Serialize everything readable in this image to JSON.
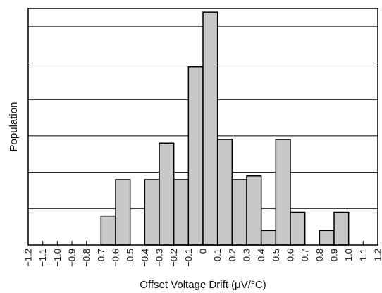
{
  "chart_data": {
    "type": "bar",
    "title": "",
    "xlabel": "Offset Voltage Drift (μV/°C)",
    "ylabel": "Population",
    "x_ticks": [
      "−1.2",
      "−1.1",
      "−1.0",
      "−0.9",
      "−0.8",
      "−0.7",
      "−0.6",
      "−0.5",
      "−0.4",
      "−0.3",
      "−0.2",
      "−0.1",
      "0",
      "0.1",
      "0.2",
      "0.3",
      "0.4",
      "0.5",
      "0.6",
      "0.7",
      "0.8",
      "0.9",
      "1.0",
      "1.1",
      "1.2"
    ],
    "xlim": [
      -1.2,
      1.2
    ],
    "ylim": [
      0,
      65
    ],
    "y_gridlines": [
      10,
      20,
      30,
      40,
      50,
      60
    ],
    "bar_color": "#c8c8c8",
    "bars": [
      {
        "x0": -0.7,
        "x1": -0.6,
        "value": 8
      },
      {
        "x0": -0.6,
        "x1": -0.5,
        "value": 18
      },
      {
        "x0": -0.4,
        "x1": -0.3,
        "value": 18
      },
      {
        "x0": -0.3,
        "x1": -0.2,
        "value": 28
      },
      {
        "x0": -0.2,
        "x1": -0.1,
        "value": 18
      },
      {
        "x0": -0.1,
        "x1": 0.0,
        "value": 49
      },
      {
        "x0": 0.0,
        "x1": 0.1,
        "value": 64
      },
      {
        "x0": 0.1,
        "x1": 0.2,
        "value": 29
      },
      {
        "x0": 0.2,
        "x1": 0.3,
        "value": 18
      },
      {
        "x0": 0.3,
        "x1": 0.4,
        "value": 19
      },
      {
        "x0": 0.4,
        "x1": 0.5,
        "value": 4
      },
      {
        "x0": 0.5,
        "x1": 0.6,
        "value": 29
      },
      {
        "x0": 0.6,
        "x1": 0.7,
        "value": 9
      },
      {
        "x0": 0.8,
        "x1": 0.9,
        "value": 4
      },
      {
        "x0": 0.9,
        "x1": 1.0,
        "value": 9
      }
    ]
  }
}
